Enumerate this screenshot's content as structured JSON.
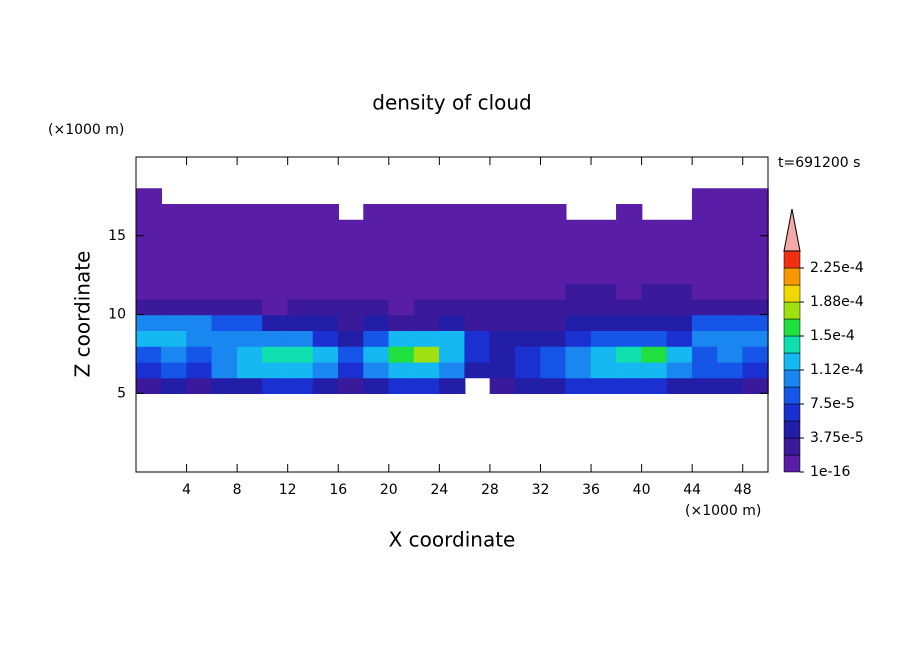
{
  "chart_data": {
    "type": "contour",
    "title": "density of cloud",
    "xlabel": "X coordinate",
    "ylabel": "Z coordinate",
    "xunit": "(×1000 m)",
    "yunit": "(×1000 m)",
    "time_label": "t=691200 s",
    "xlim": [
      0,
      50
    ],
    "ylim": [
      0,
      20
    ],
    "xticks": [
      4,
      8,
      12,
      16,
      20,
      24,
      28,
      32,
      36,
      40,
      44,
      48
    ],
    "yticks": [
      5,
      10,
      15
    ],
    "x": [
      1,
      3,
      5,
      7,
      9,
      11,
      13,
      15,
      17,
      19,
      21,
      23,
      25,
      27,
      29,
      31,
      33,
      35,
      37,
      39,
      41,
      43,
      45,
      47,
      49
    ],
    "y": [
      5.5,
      6.5,
      7.5,
      8.5,
      9.5,
      10.5,
      11.5,
      12.5,
      13.5,
      14.5,
      15.5,
      16.5,
      17.5
    ],
    "z": [
      [
        3e-05,
        5e-05,
        3e-05,
        5e-05,
        5e-05,
        6e-05,
        6e-05,
        5e-05,
        3e-05,
        5e-05,
        6e-05,
        6e-05,
        5e-05,
        null,
        3e-05,
        5e-05,
        5e-05,
        6e-05,
        6e-05,
        6e-05,
        6e-05,
        5e-05,
        5e-05,
        5e-05,
        3e-05
      ],
      [
        6e-05,
        8e-05,
        6e-05,
        0.0001,
        0.00012,
        0.00012,
        0.00012,
        0.0001,
        6e-05,
        0.0001,
        0.00012,
        0.00012,
        0.0001,
        5e-05,
        5e-05,
        6e-05,
        8e-05,
        0.0001,
        0.00012,
        0.00012,
        0.00012,
        0.0001,
        8e-05,
        8e-05,
        6e-05
      ],
      [
        8e-05,
        0.0001,
        8e-05,
        0.0001,
        0.00012,
        0.00014,
        0.00014,
        0.00012,
        8e-05,
        0.00012,
        0.00016,
        0.00017,
        0.00012,
        6e-05,
        5e-05,
        6e-05,
        8e-05,
        0.0001,
        0.00012,
        0.00014,
        0.00016,
        0.00012,
        8e-05,
        0.0001,
        8e-05
      ],
      [
        0.00012,
        0.00012,
        0.0001,
        0.0001,
        0.0001,
        0.0001,
        0.0001,
        6e-05,
        5e-05,
        8e-05,
        0.00012,
        0.00012,
        0.00012,
        6e-05,
        5e-05,
        5e-05,
        5e-05,
        6e-05,
        8e-05,
        8e-05,
        8e-05,
        6e-05,
        0.0001,
        0.0001,
        0.0001
      ],
      [
        0.0001,
        0.0001,
        0.0001,
        8e-05,
        8e-05,
        5e-05,
        5e-05,
        5e-05,
        3e-05,
        5e-05,
        3e-05,
        3e-05,
        5e-05,
        3e-05,
        3e-05,
        3e-05,
        3e-05,
        5e-05,
        5e-05,
        5e-05,
        5e-05,
        5e-05,
        8e-05,
        8e-05,
        8e-05
      ],
      [
        3e-05,
        3e-05,
        3e-05,
        3e-05,
        3e-05,
        1e-05,
        3e-05,
        3e-05,
        3e-05,
        3e-05,
        1e-05,
        3e-05,
        3e-05,
        3e-05,
        3e-05,
        3e-05,
        3e-05,
        3e-05,
        3e-05,
        3e-05,
        3e-05,
        3e-05,
        3e-05,
        3e-05,
        3e-05
      ],
      [
        1e-05,
        1e-05,
        1e-05,
        1e-05,
        1e-05,
        1e-05,
        1e-05,
        1e-05,
        1e-05,
        1e-05,
        1e-05,
        1e-05,
        1e-05,
        1e-05,
        1e-05,
        1e-05,
        1e-05,
        3e-05,
        3e-05,
        1e-05,
        3e-05,
        3e-05,
        1e-05,
        1e-05,
        1e-05
      ],
      [
        1e-05,
        1e-05,
        1e-05,
        1e-05,
        1e-05,
        1e-05,
        1e-05,
        1e-05,
        1e-05,
        1e-05,
        1e-05,
        1e-05,
        1e-05,
        1e-05,
        1e-05,
        1e-05,
        1e-05,
        1e-05,
        1e-05,
        1e-05,
        1e-05,
        1e-05,
        1e-05,
        1e-05,
        1e-05
      ],
      [
        1e-05,
        1e-05,
        1e-05,
        1e-05,
        1e-05,
        1e-05,
        1e-05,
        1e-05,
        1e-05,
        1e-05,
        1e-05,
        1e-05,
        1e-05,
        1e-05,
        1e-05,
        1e-05,
        1e-05,
        1e-05,
        1e-05,
        1e-05,
        1e-05,
        1e-05,
        1e-05,
        1e-05,
        1e-05
      ],
      [
        1e-05,
        1e-05,
        1e-05,
        1e-05,
        1e-05,
        1e-05,
        1e-05,
        1e-05,
        1e-05,
        1e-05,
        1e-05,
        1e-05,
        1e-05,
        1e-05,
        1e-05,
        1e-05,
        1e-05,
        1e-05,
        1e-05,
        1e-05,
        1e-05,
        1e-05,
        1e-05,
        1e-05,
        1e-05
      ],
      [
        1e-05,
        1e-05,
        1e-05,
        1e-05,
        1e-05,
        1e-05,
        1e-05,
        1e-05,
        1e-05,
        1e-05,
        1e-05,
        1e-05,
        1e-05,
        1e-05,
        1e-05,
        1e-05,
        1e-05,
        1e-05,
        1e-05,
        1e-05,
        1e-05,
        1e-05,
        1e-05,
        1e-05,
        1e-05
      ],
      [
        1e-05,
        1e-05,
        1e-05,
        1e-05,
        1e-05,
        1e-05,
        1e-05,
        1e-05,
        null,
        1e-05,
        1e-05,
        1e-05,
        1e-05,
        1e-05,
        1e-05,
        1e-05,
        1e-05,
        null,
        null,
        1e-05,
        null,
        null,
        1e-05,
        1e-05,
        1e-05
      ],
      [
        1e-05,
        null,
        null,
        null,
        null,
        null,
        null,
        null,
        null,
        null,
        null,
        null,
        null,
        null,
        null,
        null,
        null,
        null,
        null,
        null,
        null,
        null,
        1e-05,
        1e-05,
        1e-05
      ]
    ],
    "levels": [
      1e-16,
      1.875e-05,
      3.75e-05,
      5.625e-05,
      7.5e-05,
      9.375e-05,
      0.0001125,
      0.00013125,
      0.00015,
      0.00016875,
      0.0001875,
      0.00020625,
      0.000225,
      0.00024375
    ],
    "colors": [
      "#5a1ea6",
      "#3a1a9a",
      "#221ea8",
      "#1a30d0",
      "#1556e8",
      "#1a86f0",
      "#15b8f0",
      "#10e0b0",
      "#20e040",
      "#a0e010",
      "#f0d800",
      "#f89800",
      "#f03010"
    ],
    "extend_color": "#f4a8a8",
    "cticks": [
      1e-16,
      {
        "value": 3.75e-05,
        "label": "3.75e-5"
      },
      {
        "value": 7.5e-05,
        "label": "7.5e-5"
      },
      {
        "value": 0.0001125,
        "label": "1.12e-4"
      },
      {
        "value": 0.00015,
        "label": "1.5e-4"
      },
      {
        "value": 0.0001875,
        "label": "1.88e-4"
      },
      {
        "value": 0.000225,
        "label": "2.25e-4"
      }
    ]
  }
}
